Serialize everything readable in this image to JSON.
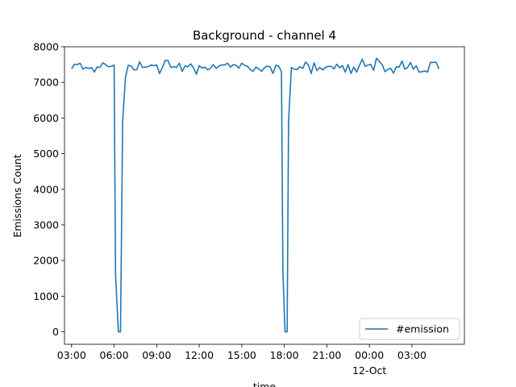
{
  "chart_data": {
    "type": "line",
    "title": "Background - channel 4",
    "xlabel": "time",
    "ylabel": "Emissions Count",
    "ylim": [
      -350,
      8000
    ],
    "xlim_hours": [
      2.5,
      30.7
    ],
    "yticks": [
      0,
      1000,
      2000,
      3000,
      4000,
      5000,
      6000,
      7000,
      8000
    ],
    "xticks": [
      {
        "h": 3,
        "label": "03:00",
        "sub": ""
      },
      {
        "h": 6,
        "label": "06:00",
        "sub": ""
      },
      {
        "h": 9,
        "label": "09:00",
        "sub": ""
      },
      {
        "h": 12,
        "label": "12:00",
        "sub": ""
      },
      {
        "h": 15,
        "label": "15:00",
        "sub": ""
      },
      {
        "h": 18,
        "label": "18:00",
        "sub": ""
      },
      {
        "h": 21,
        "label": "21:00",
        "sub": ""
      },
      {
        "h": 24,
        "label": "00:00",
        "sub": "12-Oct"
      },
      {
        "h": 27,
        "label": "03:00",
        "sub": ""
      }
    ],
    "grid": false,
    "legend_position": "lower-right",
    "series": [
      {
        "name": "#emission",
        "color": "#1f77b4",
        "points": [
          [
            3.0,
            7380
          ],
          [
            3.2,
            7510
          ],
          [
            3.4,
            7500
          ],
          [
            3.6,
            7540
          ],
          [
            3.8,
            7370
          ],
          [
            4.0,
            7420
          ],
          [
            4.2,
            7390
          ],
          [
            4.4,
            7420
          ],
          [
            4.6,
            7290
          ],
          [
            4.8,
            7430
          ],
          [
            5.0,
            7420
          ],
          [
            5.2,
            7550
          ],
          [
            5.4,
            7500
          ],
          [
            5.6,
            7440
          ],
          [
            5.8,
            7450
          ],
          [
            6.0,
            7490
          ],
          [
            6.1,
            1600
          ],
          [
            6.3,
            0
          ],
          [
            6.45,
            0
          ],
          [
            6.6,
            5900
          ],
          [
            6.8,
            7150
          ],
          [
            7.0,
            7480
          ],
          [
            7.2,
            7460
          ],
          [
            7.4,
            7350
          ],
          [
            7.6,
            7360
          ],
          [
            7.8,
            7580
          ],
          [
            8.0,
            7420
          ],
          [
            8.2,
            7430
          ],
          [
            8.4,
            7440
          ],
          [
            8.6,
            7490
          ],
          [
            8.8,
            7470
          ],
          [
            9.0,
            7490
          ],
          [
            9.2,
            7250
          ],
          [
            9.4,
            7410
          ],
          [
            9.6,
            7620
          ],
          [
            9.8,
            7610
          ],
          [
            10.0,
            7420
          ],
          [
            10.2,
            7440
          ],
          [
            10.4,
            7420
          ],
          [
            10.6,
            7540
          ],
          [
            10.8,
            7310
          ],
          [
            11.0,
            7460
          ],
          [
            11.2,
            7440
          ],
          [
            11.4,
            7520
          ],
          [
            11.6,
            7410
          ],
          [
            11.8,
            7230
          ],
          [
            12.0,
            7470
          ],
          [
            12.2,
            7400
          ],
          [
            12.4,
            7430
          ],
          [
            12.6,
            7350
          ],
          [
            12.8,
            7400
          ],
          [
            13.0,
            7500
          ],
          [
            13.2,
            7390
          ],
          [
            13.4,
            7460
          ],
          [
            13.6,
            7490
          ],
          [
            13.8,
            7490
          ],
          [
            14.0,
            7540
          ],
          [
            14.2,
            7430
          ],
          [
            14.4,
            7500
          ],
          [
            14.6,
            7480
          ],
          [
            14.8,
            7400
          ],
          [
            15.0,
            7540
          ],
          [
            15.2,
            7480
          ],
          [
            15.4,
            7450
          ],
          [
            15.6,
            7360
          ],
          [
            15.8,
            7310
          ],
          [
            16.0,
            7430
          ],
          [
            16.2,
            7380
          ],
          [
            16.4,
            7310
          ],
          [
            16.6,
            7410
          ],
          [
            16.8,
            7460
          ],
          [
            17.0,
            7430
          ],
          [
            17.2,
            7250
          ],
          [
            17.4,
            7480
          ],
          [
            17.6,
            7460
          ],
          [
            17.8,
            7300
          ],
          [
            17.9,
            1700
          ],
          [
            18.05,
            0
          ],
          [
            18.2,
            0
          ],
          [
            18.3,
            5900
          ],
          [
            18.5,
            7420
          ],
          [
            18.7,
            7370
          ],
          [
            18.9,
            7360
          ],
          [
            19.1,
            7440
          ],
          [
            19.3,
            7390
          ],
          [
            19.5,
            7570
          ],
          [
            19.7,
            7490
          ],
          [
            19.9,
            7250
          ],
          [
            20.1,
            7550
          ],
          [
            20.3,
            7330
          ],
          [
            20.5,
            7420
          ],
          [
            20.7,
            7350
          ],
          [
            20.9,
            7420
          ],
          [
            21.1,
            7450
          ],
          [
            21.3,
            7450
          ],
          [
            21.5,
            7380
          ],
          [
            21.7,
            7510
          ],
          [
            21.9,
            7410
          ],
          [
            22.1,
            7470
          ],
          [
            22.3,
            7290
          ],
          [
            22.5,
            7500
          ],
          [
            22.7,
            7250
          ],
          [
            22.9,
            7430
          ],
          [
            23.1,
            7290
          ],
          [
            23.3,
            7480
          ],
          [
            23.5,
            7650
          ],
          [
            23.7,
            7450
          ],
          [
            23.9,
            7490
          ],
          [
            24.1,
            7500
          ],
          [
            24.3,
            7340
          ],
          [
            24.5,
            7680
          ],
          [
            24.7,
            7590
          ],
          [
            24.9,
            7500
          ],
          [
            25.1,
            7300
          ],
          [
            25.3,
            7370
          ],
          [
            25.5,
            7390
          ],
          [
            25.7,
            7260
          ],
          [
            25.9,
            7440
          ],
          [
            26.1,
            7430
          ],
          [
            26.3,
            7600
          ],
          [
            26.5,
            7370
          ],
          [
            26.7,
            7420
          ],
          [
            26.9,
            7560
          ],
          [
            27.1,
            7370
          ],
          [
            27.3,
            7470
          ],
          [
            27.5,
            7290
          ],
          [
            27.7,
            7300
          ],
          [
            27.9,
            7320
          ],
          [
            28.1,
            7290
          ],
          [
            28.3,
            7560
          ],
          [
            28.5,
            7560
          ],
          [
            28.7,
            7570
          ],
          [
            28.9,
            7380
          ]
        ]
      }
    ]
  }
}
